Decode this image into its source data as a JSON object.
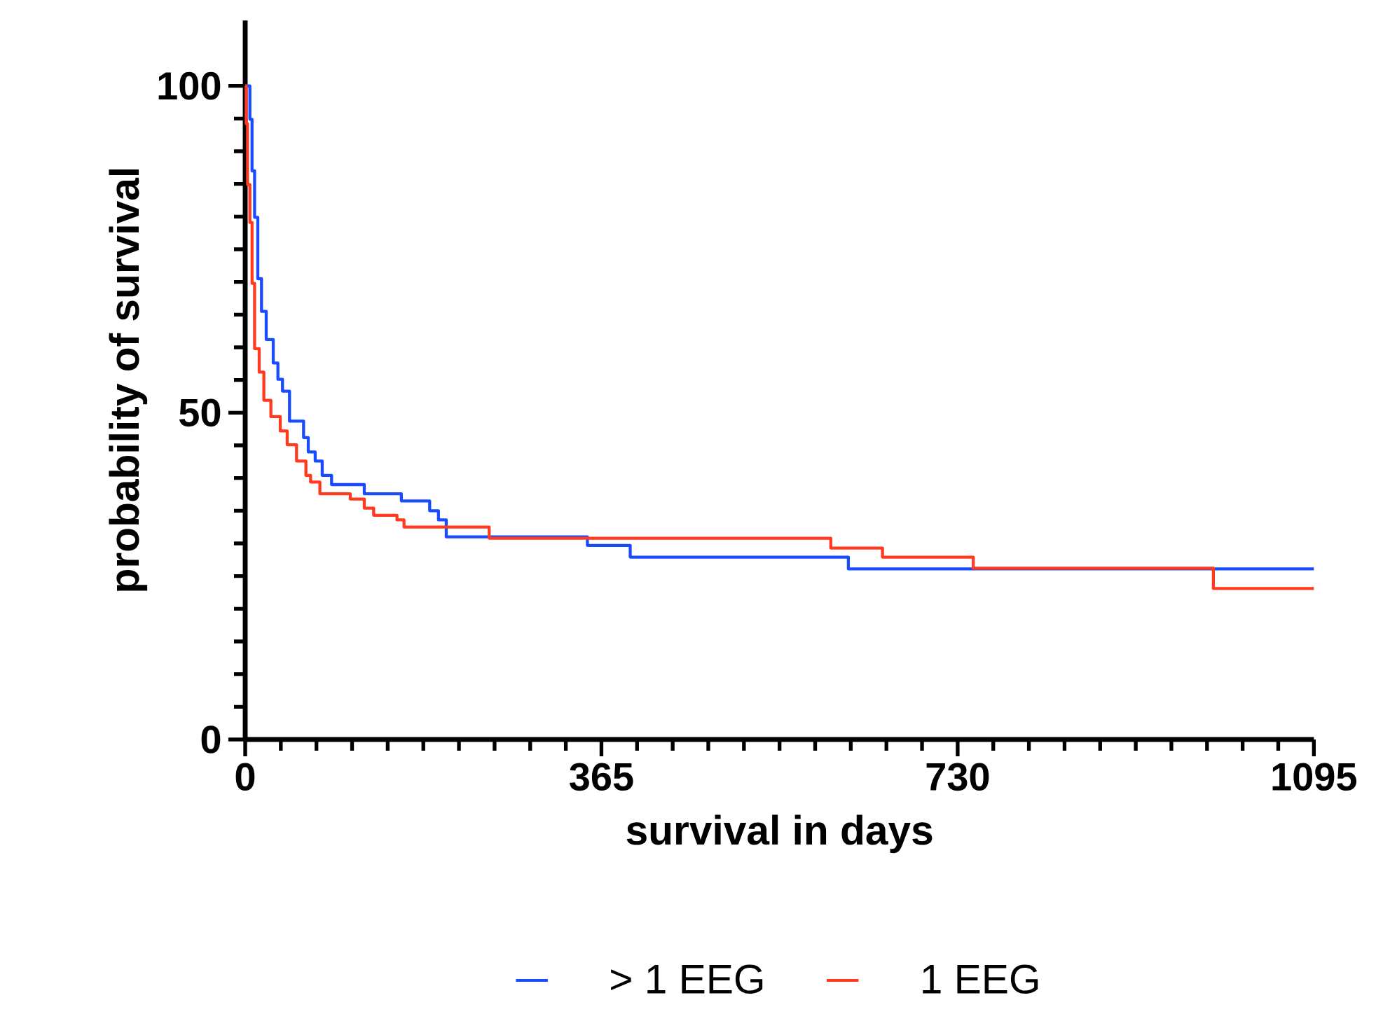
{
  "chart_data": {
    "type": "step",
    "xlabel": "survival in days",
    "ylabel": "probability of survival",
    "xlim": [
      0,
      1095
    ],
    "ylim": [
      0,
      110
    ],
    "xticks": [
      0,
      365,
      730,
      1095
    ],
    "yticks": [
      0,
      50,
      100
    ],
    "legend": "bottom",
    "series": [
      {
        "name": "> 1 EEG",
        "color": "#1a4cff",
        "x": [
          0,
          4.8,
          7,
          9.6,
          12.9,
          16.7,
          21.5,
          28.7,
          33.5,
          38.2,
          45.4,
          59.8,
          64.6,
          71.7,
          78.9,
          88.5,
          122,
          160,
          189,
          198,
          206,
          350.6,
          394.5,
          618,
          1095
        ],
        "values": [
          100,
          94.9,
          87,
          79.9,
          70.5,
          65.5,
          61.2,
          57.6,
          55.1,
          53.3,
          48.7,
          46.2,
          44,
          42.6,
          40.4,
          39,
          37.6,
          36.5,
          35,
          33.6,
          31,
          29.7,
          27.9,
          26.1,
          26.1
        ]
      },
      {
        "name": "1 EEG",
        "color": "#ff3a1f",
        "x": [
          0,
          1,
          2.4,
          4.8,
          7,
          9.6,
          14.3,
          19.1,
          26.3,
          35.9,
          43,
          52.6,
          62.2,
          67,
          76.5,
          107.6,
          122,
          131.6,
          155.5,
          162.7,
          250,
          600,
          653,
          746,
          992,
          1095
        ],
        "values": [
          100,
          94.2,
          84.9,
          79.1,
          69.8,
          59.8,
          56.2,
          51.9,
          49.4,
          47.2,
          45.1,
          42.6,
          40.4,
          39.4,
          37.6,
          36.8,
          35.4,
          34.3,
          33.6,
          32.5,
          30.8,
          29.3,
          27.9,
          26.2,
          23.1,
          23.1
        ]
      }
    ]
  }
}
